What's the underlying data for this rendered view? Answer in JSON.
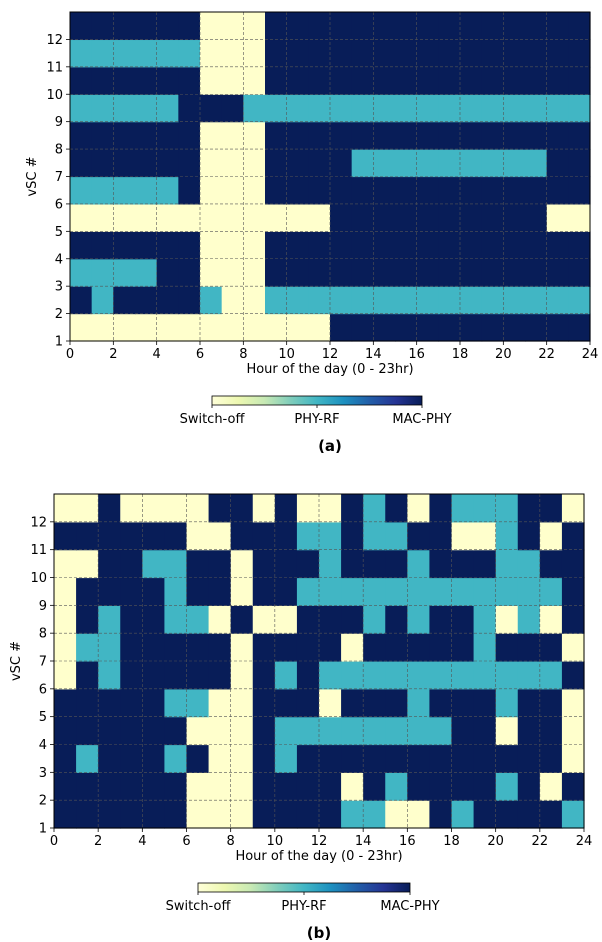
{
  "colors": {
    "switch_off": "#ffffcc",
    "phy_rf": "#41b6c4",
    "mac_phy": "#081d58",
    "grid": "#555555",
    "colorbar_stops": [
      "#ffffd9",
      "#edf8b1",
      "#c7e9b4",
      "#7fcdbb",
      "#41b6c4",
      "#1d91c0",
      "#225ea8",
      "#253494",
      "#081d58"
    ]
  },
  "chart_data": [
    {
      "type": "heatmap",
      "panel_label": "(a)",
      "xlabel": "Hour of the day (0 - 23hr)",
      "ylabel": "vSC #",
      "xlim": [
        0,
        24
      ],
      "ylim": [
        1,
        13
      ],
      "x_ticks": [
        0,
        2,
        4,
        6,
        8,
        10,
        12,
        14,
        16,
        18,
        20,
        22,
        24
      ],
      "y_ticks": [
        1,
        2,
        3,
        4,
        5,
        6,
        7,
        8,
        9,
        10,
        11,
        12
      ],
      "grid": true,
      "value_legend": {
        "0": "Switch-off",
        "1": "PHY-RF",
        "2": "MAC-PHY"
      },
      "colorbar_labels": [
        "Switch-off",
        "PHY-RF",
        "MAC-PHY"
      ],
      "rows_by_vsc": [
        {
          "vsc": 1,
          "values": [
            0,
            0,
            0,
            0,
            0,
            0,
            0,
            0,
            0,
            0,
            0,
            0,
            2,
            2,
            2,
            2,
            2,
            2,
            2,
            2,
            2,
            2,
            2,
            2
          ]
        },
        {
          "vsc": 2,
          "values": [
            2,
            1,
            2,
            2,
            2,
            2,
            1,
            0,
            0,
            1,
            1,
            1,
            1,
            1,
            1,
            1,
            1,
            1,
            1,
            1,
            1,
            1,
            1,
            1
          ]
        },
        {
          "vsc": 3,
          "values": [
            1,
            1,
            1,
            1,
            2,
            2,
            0,
            0,
            0,
            2,
            2,
            2,
            2,
            2,
            2,
            2,
            2,
            2,
            2,
            2,
            2,
            2,
            2,
            2
          ]
        },
        {
          "vsc": 4,
          "values": [
            2,
            2,
            2,
            2,
            2,
            2,
            0,
            0,
            0,
            2,
            2,
            2,
            2,
            2,
            2,
            2,
            2,
            2,
            2,
            2,
            2,
            2,
            2,
            2
          ]
        },
        {
          "vsc": 5,
          "values": [
            0,
            0,
            0,
            0,
            0,
            0,
            0,
            0,
            0,
            0,
            0,
            0,
            2,
            2,
            2,
            2,
            2,
            2,
            2,
            2,
            2,
            2,
            0,
            0
          ]
        },
        {
          "vsc": 6,
          "values": [
            1,
            1,
            1,
            1,
            1,
            2,
            0,
            0,
            0,
            2,
            2,
            2,
            2,
            2,
            2,
            2,
            2,
            2,
            2,
            2,
            2,
            2,
            2,
            2
          ]
        },
        {
          "vsc": 7,
          "values": [
            2,
            2,
            2,
            2,
            2,
            2,
            0,
            0,
            0,
            2,
            2,
            2,
            2,
            1,
            1,
            1,
            1,
            1,
            1,
            1,
            1,
            1,
            2,
            2
          ]
        },
        {
          "vsc": 8,
          "values": [
            2,
            2,
            2,
            2,
            2,
            2,
            0,
            0,
            0,
            2,
            2,
            2,
            2,
            2,
            2,
            2,
            2,
            2,
            2,
            2,
            2,
            2,
            2,
            2
          ]
        },
        {
          "vsc": 9,
          "values": [
            1,
            1,
            1,
            1,
            1,
            2,
            2,
            2,
            1,
            1,
            1,
            1,
            1,
            1,
            1,
            1,
            1,
            1,
            1,
            1,
            1,
            1,
            1,
            1
          ]
        },
        {
          "vsc": 10,
          "values": [
            2,
            2,
            2,
            2,
            2,
            2,
            0,
            0,
            0,
            2,
            2,
            2,
            2,
            2,
            2,
            2,
            2,
            2,
            2,
            2,
            2,
            2,
            2,
            2
          ]
        },
        {
          "vsc": 11,
          "values": [
            1,
            1,
            1,
            1,
            1,
            1,
            0,
            0,
            0,
            2,
            2,
            2,
            2,
            2,
            2,
            2,
            2,
            2,
            2,
            2,
            2,
            2,
            2,
            2
          ]
        },
        {
          "vsc": 12,
          "values": [
            2,
            2,
            2,
            2,
            2,
            2,
            0,
            0,
            0,
            2,
            2,
            2,
            2,
            2,
            2,
            2,
            2,
            2,
            2,
            2,
            2,
            2,
            2,
            2
          ]
        }
      ]
    },
    {
      "type": "heatmap",
      "panel_label": "(b)",
      "xlabel": "Hour of the day (0 - 23hr)",
      "ylabel": "vSC #",
      "xlim": [
        0,
        24
      ],
      "ylim": [
        1,
        13
      ],
      "x_ticks": [
        0,
        2,
        4,
        6,
        8,
        10,
        12,
        14,
        16,
        18,
        20,
        22,
        24
      ],
      "y_ticks": [
        1,
        2,
        3,
        4,
        5,
        6,
        7,
        8,
        9,
        10,
        11,
        12
      ],
      "grid": true,
      "value_legend": {
        "0": "Switch-off",
        "1": "PHY-RF",
        "2": "MAC-PHY"
      },
      "colorbar_labels": [
        "Switch-off",
        "PHY-RF",
        "MAC-PHY"
      ],
      "rows_by_vsc": [
        {
          "vsc": 1,
          "values": [
            2,
            2,
            2,
            2,
            2,
            2,
            0,
            0,
            0,
            2,
            2,
            2,
            2,
            1,
            1,
            0,
            0,
            2,
            1,
            2,
            2,
            2,
            2,
            1
          ]
        },
        {
          "vsc": 2,
          "values": [
            2,
            2,
            2,
            2,
            2,
            2,
            0,
            0,
            0,
            2,
            2,
            2,
            2,
            0,
            2,
            1,
            2,
            2,
            2,
            2,
            1,
            2,
            0,
            2
          ]
        },
        {
          "vsc": 3,
          "values": [
            2,
            1,
            2,
            2,
            2,
            1,
            2,
            0,
            0,
            2,
            1,
            2,
            2,
            2,
            2,
            2,
            2,
            2,
            2,
            2,
            2,
            2,
            2,
            0
          ]
        },
        {
          "vsc": 4,
          "values": [
            2,
            2,
            2,
            2,
            2,
            2,
            0,
            0,
            0,
            2,
            1,
            1,
            1,
            1,
            1,
            1,
            1,
            1,
            2,
            2,
            0,
            2,
            2,
            0
          ]
        },
        {
          "vsc": 5,
          "values": [
            2,
            2,
            2,
            2,
            2,
            1,
            1,
            0,
            0,
            2,
            2,
            2,
            0,
            2,
            2,
            2,
            1,
            2,
            2,
            2,
            1,
            2,
            2,
            0
          ]
        },
        {
          "vsc": 6,
          "values": [
            0,
            2,
            1,
            2,
            2,
            2,
            2,
            2,
            0,
            2,
            1,
            2,
            1,
            1,
            1,
            1,
            1,
            1,
            1,
            1,
            1,
            1,
            1,
            2
          ]
        },
        {
          "vsc": 7,
          "values": [
            0,
            1,
            1,
            2,
            2,
            2,
            2,
            2,
            0,
            2,
            2,
            2,
            2,
            0,
            2,
            2,
            2,
            2,
            2,
            1,
            2,
            2,
            2,
            0
          ]
        },
        {
          "vsc": 8,
          "values": [
            0,
            2,
            1,
            2,
            2,
            1,
            1,
            0,
            2,
            0,
            0,
            2,
            2,
            2,
            1,
            2,
            1,
            2,
            2,
            1,
            0,
            1,
            0,
            2
          ]
        },
        {
          "vsc": 9,
          "values": [
            0,
            2,
            2,
            2,
            2,
            1,
            2,
            2,
            0,
            2,
            2,
            1,
            1,
            1,
            1,
            1,
            1,
            1,
            1,
            1,
            1,
            1,
            1,
            2
          ]
        },
        {
          "vsc": 10,
          "values": [
            0,
            0,
            2,
            2,
            1,
            1,
            2,
            2,
            0,
            2,
            2,
            2,
            1,
            2,
            2,
            2,
            1,
            2,
            2,
            2,
            1,
            1,
            2,
            2
          ]
        },
        {
          "vsc": 11,
          "values": [
            2,
            2,
            2,
            2,
            2,
            2,
            0,
            0,
            2,
            2,
            2,
            1,
            1,
            2,
            1,
            1,
            2,
            2,
            0,
            0,
            1,
            2,
            0,
            2
          ]
        },
        {
          "vsc": 12,
          "values": [
            0,
            0,
            2,
            0,
            0,
            0,
            0,
            2,
            2,
            0,
            2,
            0,
            0,
            2,
            1,
            2,
            0,
            2,
            1,
            1,
            1,
            2,
            2,
            0
          ]
        }
      ]
    }
  ]
}
